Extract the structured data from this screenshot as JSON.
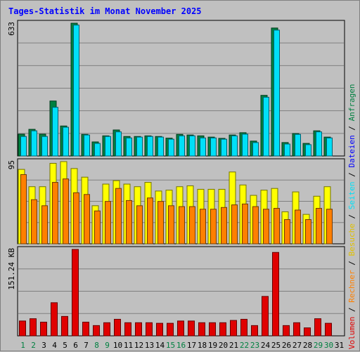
{
  "title": "Tages-Statistik im Monat November 2025",
  "colors": {
    "anfragen": "#008040",
    "dateien": "#00e0f8",
    "seiten": "#00e0f8",
    "besuche": "#ffff00",
    "rechner": "#ff8000",
    "volumen": "#e00000",
    "weekday_label": "#000000",
    "weekend_label": "#008040",
    "separator": "#000000"
  },
  "chart_data": [
    {
      "type": "bar",
      "panel": "top",
      "ymax_label": "633",
      "ylim": [
        0,
        633
      ],
      "grid": true,
      "categories": [
        "1",
        "2",
        "3",
        "4",
        "5",
        "6",
        "7",
        "8",
        "9",
        "10",
        "11",
        "12",
        "13",
        "14",
        "15",
        "16",
        "17",
        "18",
        "19",
        "20",
        "21",
        "22",
        "23",
        "24",
        "25",
        "26",
        "27",
        "28",
        "29",
        "30",
        "31"
      ],
      "series": [
        {
          "name": "Anfragen",
          "values": [
            104,
            127,
            104,
            262,
            143,
            633,
            103,
            67,
            96,
            124,
            93,
            93,
            96,
            93,
            85,
            103,
            100,
            96,
            90,
            84,
            100,
            111,
            71,
            289,
            610,
            64,
            107,
            60,
            120,
            90,
            null
          ]
        },
        {
          "name": "Dateien",
          "values": [
            93,
            120,
            93,
            232,
            137,
            624,
            100,
            60,
            93,
            115,
            86,
            90,
            93,
            90,
            80,
            96,
            96,
            86,
            86,
            80,
            96,
            104,
            64,
            280,
            600,
            57,
            103,
            54,
            115,
            86,
            null
          ]
        }
      ],
      "legend": [
        {
          "label": "Anfragen",
          "color": "#008040"
        },
        {
          "label": "Dateien",
          "color": "#0000ff"
        }
      ]
    },
    {
      "type": "bar",
      "panel": "middle",
      "ymax_label": "95",
      "ylim": [
        0,
        95
      ],
      "grid": true,
      "categories": [
        "1",
        "2",
        "3",
        "4",
        "5",
        "6",
        "7",
        "8",
        "9",
        "10",
        "11",
        "12",
        "13",
        "14",
        "15",
        "16",
        "17",
        "18",
        "19",
        "20",
        "21",
        "22",
        "23",
        "24",
        "25",
        "26",
        "27",
        "28",
        "29",
        "30",
        "31"
      ],
      "series": [
        {
          "name": "Seiten",
          "values": [
            86,
            66,
            66,
            93,
            95,
            87,
            77,
            44,
            69,
            73,
            69,
            66,
            71,
            61,
            62,
            66,
            67,
            63,
            63,
            63,
            83,
            68,
            56,
            62,
            64,
            37,
            60,
            34,
            55,
            66,
            null
          ]
        },
        {
          "name": "Besuche",
          "values": [
            86,
            66,
            66,
            93,
            95,
            87,
            77,
            44,
            69,
            73,
            69,
            66,
            71,
            61,
            62,
            66,
            67,
            63,
            63,
            63,
            83,
            68,
            56,
            62,
            64,
            37,
            60,
            34,
            55,
            66,
            null
          ]
        },
        {
          "name": "Rechner",
          "values": [
            80,
            51,
            44,
            71,
            75,
            59,
            57,
            38,
            49,
            64,
            50,
            44,
            53,
            49,
            44,
            43,
            43,
            40,
            40,
            42,
            45,
            46,
            43,
            40,
            41,
            28,
            39,
            28,
            41,
            40,
            null
          ]
        }
      ],
      "legend": [
        {
          "label": "Seiten",
          "color": "#00e0f8"
        },
        {
          "label": "Besuche",
          "color": "#e0c000"
        },
        {
          "label": "Rechner",
          "color": "#ff8000"
        }
      ]
    },
    {
      "type": "bar",
      "panel": "bottom",
      "ymax_label": "151.24 KB",
      "ylim": [
        0,
        151.24
      ],
      "unit": "KB",
      "grid": true,
      "categories": [
        "1",
        "2",
        "3",
        "4",
        "5",
        "6",
        "7",
        "8",
        "9",
        "10",
        "11",
        "12",
        "13",
        "14",
        "15",
        "16",
        "17",
        "18",
        "19",
        "20",
        "21",
        "22",
        "23",
        "24",
        "25",
        "26",
        "27",
        "28",
        "29",
        "30",
        "31"
      ],
      "series": [
        {
          "name": "Volumen",
          "values": [
            26,
            30,
            24,
            58,
            34,
            151.24,
            24,
            18,
            23,
            29,
            23,
            23,
            23,
            22,
            22,
            26,
            26,
            23,
            23,
            23,
            27,
            29,
            18,
            69,
            146,
            18,
            23,
            14,
            30,
            22,
            null
          ]
        }
      ],
      "legend": [
        {
          "label": "Volumen",
          "color": "#e00000"
        }
      ]
    }
  ],
  "x_labels": [
    {
      "label": "1",
      "weekend": true
    },
    {
      "label": "2",
      "weekend": true
    },
    {
      "label": "3",
      "weekend": false
    },
    {
      "label": "4",
      "weekend": false
    },
    {
      "label": "5",
      "weekend": false
    },
    {
      "label": "6",
      "weekend": false
    },
    {
      "label": "7",
      "weekend": false
    },
    {
      "label": "8",
      "weekend": true
    },
    {
      "label": "9",
      "weekend": true
    },
    {
      "label": "10",
      "weekend": false
    },
    {
      "label": "11",
      "weekend": false
    },
    {
      "label": "12",
      "weekend": false
    },
    {
      "label": "13",
      "weekend": false
    },
    {
      "label": "14",
      "weekend": false
    },
    {
      "label": "15",
      "weekend": true
    },
    {
      "label": "16",
      "weekend": true
    },
    {
      "label": "17",
      "weekend": false
    },
    {
      "label": "18",
      "weekend": false
    },
    {
      "label": "19",
      "weekend": false
    },
    {
      "label": "20",
      "weekend": false
    },
    {
      "label": "21",
      "weekend": false
    },
    {
      "label": "22",
      "weekend": true
    },
    {
      "label": "23",
      "weekend": true
    },
    {
      "label": "24",
      "weekend": false
    },
    {
      "label": "25",
      "weekend": false
    },
    {
      "label": "26",
      "weekend": false
    },
    {
      "label": "27",
      "weekend": false
    },
    {
      "label": "28",
      "weekend": false
    },
    {
      "label": "29",
      "weekend": true
    },
    {
      "label": "30",
      "weekend": true
    },
    {
      "label": "31",
      "weekend": false
    }
  ]
}
